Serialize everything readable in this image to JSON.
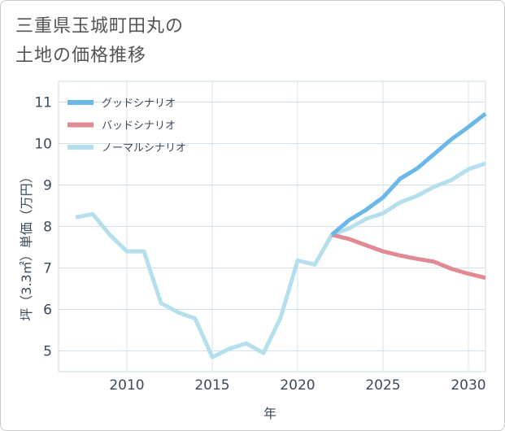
{
  "title_lines": [
    "三重県玉城町田丸の",
    "土地の価格推移"
  ],
  "chart_data": {
    "type": "line",
    "title": "三重県玉城町田丸の土地の価格推移",
    "xlabel": "年",
    "ylabel": "坪（3.3㎡）単価（万円）",
    "xlim": [
      2006,
      2031
    ],
    "ylim": [
      4.5,
      11.5
    ],
    "xticks": [
      2010,
      2015,
      2020,
      2025,
      2030
    ],
    "yticks": [
      5,
      6,
      7,
      8,
      9,
      10,
      11
    ],
    "grid": true,
    "legend_position": "top-left",
    "series": [
      {
        "name": "グッドシナリオ",
        "color": "#6ab8ea",
        "x": [
          2022,
          2023,
          2024,
          2025,
          2026,
          2027,
          2028,
          2029,
          2030,
          2031
        ],
        "y": [
          7.8,
          8.15,
          8.4,
          8.7,
          9.15,
          9.4,
          9.75,
          10.1,
          10.4,
          10.72
        ]
      },
      {
        "name": "バッドシナリオ",
        "color": "#e08a93",
        "x": [
          2022,
          2023,
          2024,
          2025,
          2026,
          2027,
          2028,
          2029,
          2030,
          2031
        ],
        "y": [
          7.8,
          7.7,
          7.55,
          7.4,
          7.3,
          7.22,
          7.15,
          6.98,
          6.86,
          6.76
        ]
      },
      {
        "name": "ノーマルシナリオ",
        "color": "#b6dfee",
        "x": [
          2007,
          2008,
          2009,
          2010,
          2011,
          2012,
          2013,
          2014,
          2015,
          2016,
          2017,
          2018,
          2019,
          2020,
          2021,
          2022,
          2023,
          2024,
          2025,
          2026,
          2027,
          2028,
          2029,
          2030,
          2031
        ],
        "y": [
          8.22,
          8.3,
          7.8,
          7.4,
          7.4,
          6.15,
          5.93,
          5.78,
          4.85,
          5.05,
          5.18,
          4.95,
          5.8,
          7.18,
          7.08,
          7.8,
          7.95,
          8.18,
          8.32,
          8.58,
          8.74,
          8.96,
          9.12,
          9.38,
          9.52
        ]
      }
    ]
  }
}
